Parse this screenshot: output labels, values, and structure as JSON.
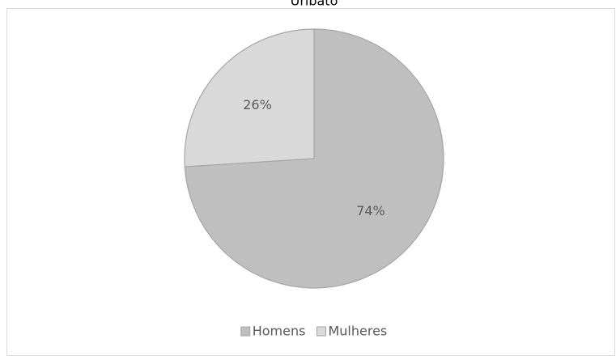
{
  "chart_data": {
    "type": "pie",
    "title": "Uribato",
    "categories": [
      "Homens",
      "Mulheres"
    ],
    "values": [
      74,
      26
    ],
    "value_labels": [
      "74%",
      "26%"
    ],
    "colors": [
      "#bfbfbf",
      "#d9d9d9"
    ],
    "legend": "bottom"
  }
}
